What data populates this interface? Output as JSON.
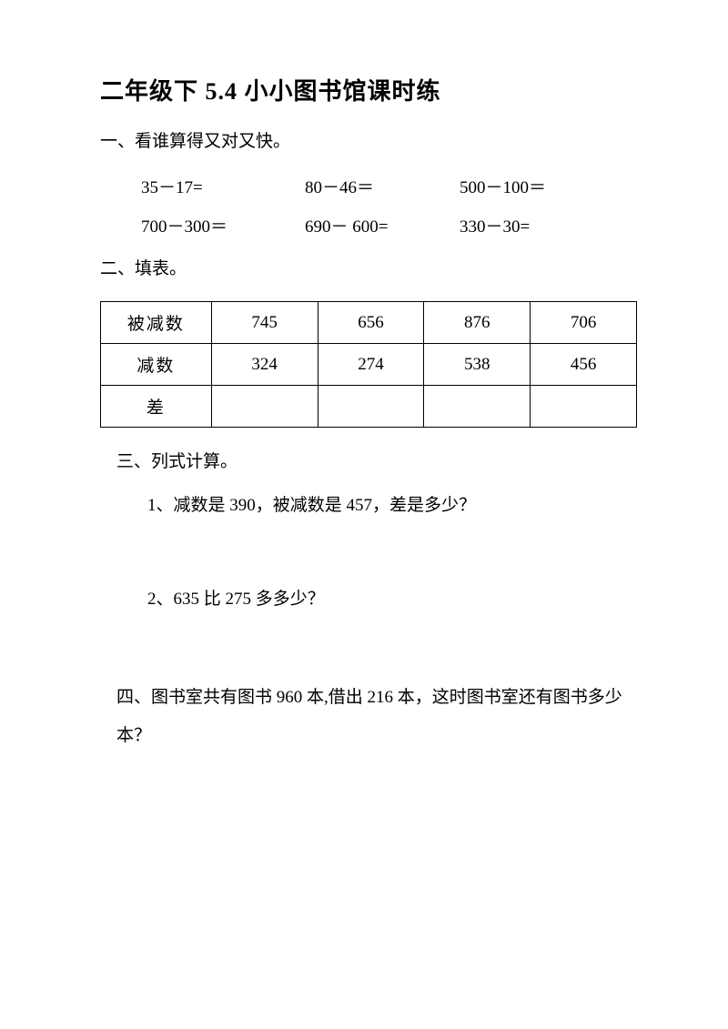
{
  "title": "二年级下 5.4 小小图书馆课时练",
  "section1": {
    "header": "一、看谁算得又对又快。",
    "row1": {
      "c1": "35－17=",
      "c2": "80－46＝",
      "c3": "500－100＝"
    },
    "row2": {
      "c1": "700－300＝",
      "c2": "690－ 600=",
      "c3": "330－30="
    }
  },
  "section2": {
    "header": "二、填表。",
    "table": {
      "row_labels": [
        "被减数",
        "减数",
        "差"
      ],
      "cols": [
        {
          "minuend": "745",
          "subtrahend": "324",
          "diff": ""
        },
        {
          "minuend": "656",
          "subtrahend": "274",
          "diff": ""
        },
        {
          "minuend": "876",
          "subtrahend": "538",
          "diff": ""
        },
        {
          "minuend": "706",
          "subtrahend": "456",
          "diff": ""
        }
      ]
    }
  },
  "section3": {
    "header": "三、列式计算。",
    "q1": "1、减数是 390，被减数是 457，差是多少？",
    "q2": "2、635 比 275 多多少？"
  },
  "section4": {
    "text": "四、图书室共有图书 960 本,借出 216 本，这时图书室还有图书多少本？"
  },
  "colors": {
    "text": "#000000",
    "background": "#ffffff",
    "border": "#000000"
  }
}
